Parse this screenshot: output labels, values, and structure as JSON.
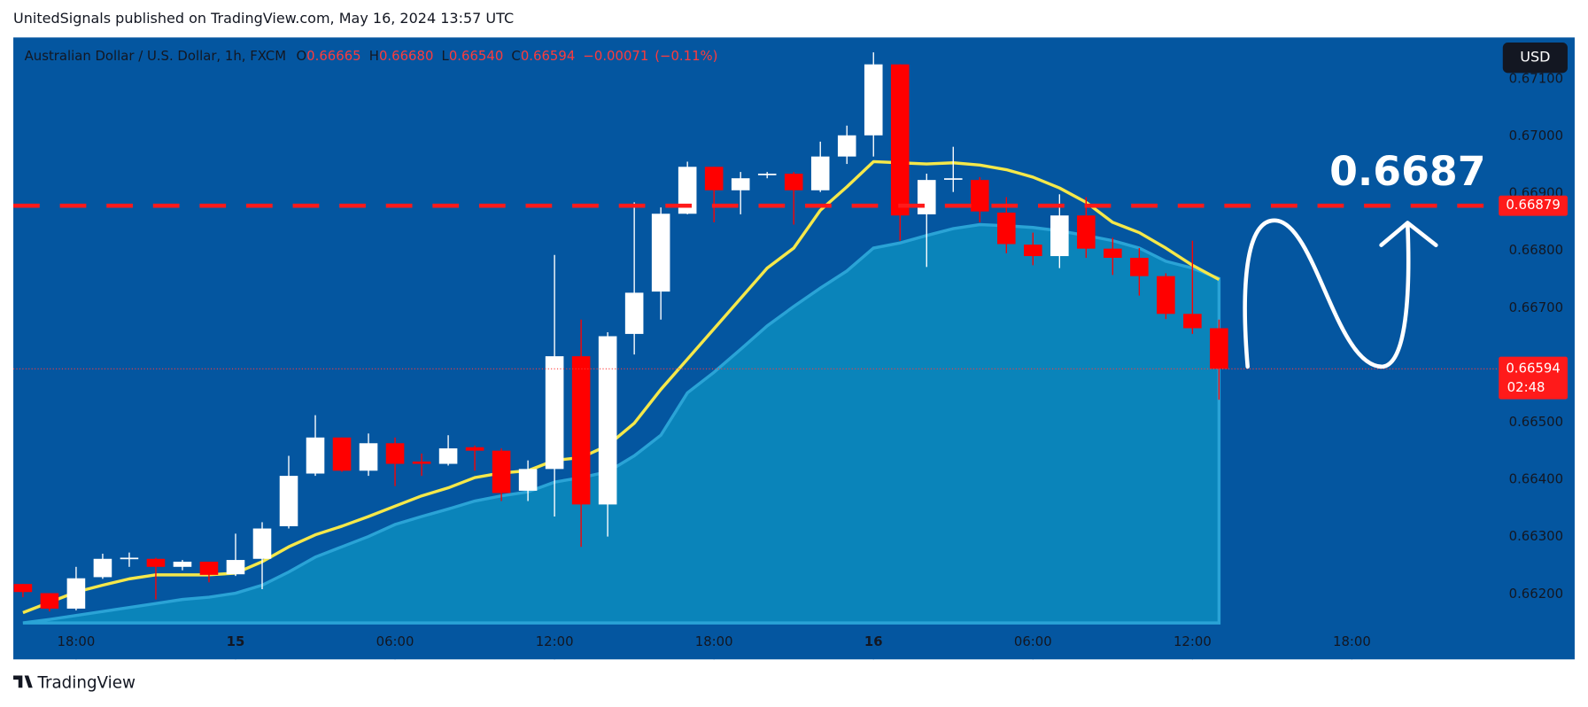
{
  "header": {
    "title": "UnitedSignals published on TradingView.com, May 16, 2024 13:57 UTC",
    "brand": "TradingView"
  },
  "legend": {
    "symbol": "Australian Dollar / U.S. Dollar, 1h, FXCM",
    "items": [
      {
        "key": "O",
        "value": "0.66665"
      },
      {
        "key": "H",
        "value": "0.66680"
      },
      {
        "key": "L",
        "value": "0.66540"
      },
      {
        "key": "C",
        "value": "0.66594"
      }
    ],
    "change": "−0.00071",
    "change_pct": "(−0.11%)"
  },
  "currency": "USD",
  "chart_data": {
    "type": "candlestick",
    "categories": [
      null,
      null,
      "18:00",
      null,
      null,
      null,
      null,
      null,
      "15",
      null,
      null,
      null,
      null,
      null,
      "06:00",
      null,
      null,
      null,
      null,
      null,
      "12:00",
      null,
      null,
      null,
      null,
      null,
      "18:00",
      null,
      null,
      null,
      null,
      null,
      "16",
      null,
      null,
      null,
      null,
      null,
      "06:00",
      null,
      null,
      null,
      null,
      null,
      "12:00",
      null,
      null,
      null,
      null,
      null,
      "18:00",
      null,
      null,
      null,
      null,
      null
    ],
    "open": [
      0.66218,
      0.66202,
      0.66175,
      0.6623,
      0.66262,
      0.66262,
      0.66248,
      0.66257,
      0.66235,
      0.66262,
      0.66319,
      0.66411,
      0.66474,
      0.66416,
      0.66464,
      0.66432,
      0.66428,
      0.66457,
      0.66451,
      0.66381,
      0.66419,
      0.66616,
      0.66357,
      0.66655,
      0.66729,
      0.66865,
      0.66947,
      0.66906,
      0.66933,
      0.66935,
      0.66906,
      0.66965,
      0.67002,
      0.67126,
      0.66864,
      0.66926,
      0.66924,
      0.66867,
      0.66811,
      0.66791,
      0.66862,
      0.66804,
      0.66788,
      0.66756,
      0.6669,
      0.66665,
      null,
      null,
      null,
      null,
      null,
      null,
      null,
      null,
      null,
      null
    ],
    "high": [
      0.66218,
      0.66202,
      0.66248,
      0.66271,
      0.66273,
      0.66264,
      0.6626,
      0.66257,
      0.66306,
      0.66326,
      0.66442,
      0.66513,
      0.66474,
      0.66481,
      0.66474,
      0.66446,
      0.66478,
      0.6646,
      0.66455,
      0.66434,
      0.66793,
      0.6668,
      0.66658,
      0.66885,
      0.66876,
      0.66956,
      0.66947,
      0.66938,
      0.66938,
      0.66938,
      0.66991,
      0.67019,
      0.67147,
      0.67126,
      0.66935,
      0.66982,
      0.66929,
      0.66894,
      0.66832,
      0.66899,
      0.66894,
      0.66823,
      0.66805,
      0.66761,
      0.66818,
      0.6668,
      null,
      null,
      null,
      null,
      null,
      null,
      null,
      null,
      null,
      null
    ],
    "low": [
      0.66195,
      0.6617,
      0.66172,
      0.66227,
      0.66248,
      0.66191,
      0.66242,
      0.66221,
      0.66232,
      0.66209,
      0.66315,
      0.66407,
      0.66414,
      0.66407,
      0.66389,
      0.66407,
      0.66425,
      0.66416,
      0.66363,
      0.66363,
      0.66336,
      0.66283,
      0.66301,
      0.66619,
      0.6668,
      0.66864,
      0.6685,
      0.66864,
      0.66927,
      0.66846,
      0.66903,
      0.66952,
      0.66965,
      0.66818,
      0.66772,
      0.66903,
      0.6685,
      0.66796,
      0.66775,
      0.6677,
      0.66788,
      0.66758,
      0.66722,
      0.66681,
      0.66655,
      0.6654,
      null,
      null,
      null,
      null,
      null,
      null,
      null,
      null,
      null,
      null
    ],
    "close": [
      0.66204,
      0.66175,
      0.66228,
      0.66262,
      0.66264,
      0.66248,
      0.66257,
      0.66234,
      0.6626,
      0.66315,
      0.66407,
      0.66474,
      0.66416,
      0.66464,
      0.66428,
      0.66428,
      0.66455,
      0.66451,
      0.66377,
      0.66419,
      0.66616,
      0.66357,
      0.66651,
      0.66727,
      0.66865,
      0.66947,
      0.66906,
      0.66927,
      0.66935,
      0.66906,
      0.66965,
      0.67002,
      0.67126,
      0.66862,
      0.66924,
      0.66927,
      0.66869,
      0.66812,
      0.66791,
      0.66862,
      0.66804,
      0.66788,
      0.66756,
      0.6669,
      0.66665,
      0.66594,
      null,
      null,
      null,
      null,
      null,
      null,
      null,
      null,
      null,
      null
    ],
    "up_color": "#ffffff",
    "down_color": "#ff0000",
    "series": [
      {
        "color": "#f5e84a",
        "values": [
          0.66168,
          0.66186,
          0.66204,
          0.66216,
          0.66227,
          0.66234,
          0.66234,
          0.66234,
          0.66237,
          0.66257,
          0.66283,
          0.66304,
          0.66319,
          0.66336,
          0.66354,
          0.66372,
          0.66386,
          0.66404,
          0.66412,
          0.66416,
          0.66434,
          0.66439,
          0.6646,
          0.66499,
          0.66558,
          0.66611,
          0.66664,
          0.66717,
          0.6677,
          0.66805,
          0.66871,
          0.66912,
          0.66956,
          0.66954,
          0.66952,
          0.66954,
          0.6695,
          0.66942,
          0.66929,
          0.6691,
          0.66885,
          0.6685,
          0.66832,
          0.66805,
          0.66775,
          0.6675,
          null,
          null,
          null,
          null,
          null,
          null,
          null,
          null,
          null,
          null
        ]
      },
      {
        "color": "#0a84ba",
        "fill": true,
        "values": [
          0.6615,
          0.66156,
          0.66163,
          0.6617,
          0.66177,
          0.66184,
          0.66191,
          0.66195,
          0.66202,
          0.66216,
          0.66239,
          0.66265,
          0.66283,
          0.66301,
          0.66322,
          0.66336,
          0.66349,
          0.66363,
          0.66372,
          0.66379,
          0.66396,
          0.66404,
          0.66414,
          0.66442,
          0.66478,
          0.66552,
          0.66588,
          0.66628,
          0.66669,
          0.66703,
          0.66735,
          0.66765,
          0.66805,
          0.66814,
          0.66827,
          0.66839,
          0.66846,
          0.66844,
          0.66841,
          0.66835,
          0.66827,
          0.66818,
          0.66805,
          0.66782,
          0.6677,
          0.66752,
          null,
          null,
          null,
          null,
          null,
          null,
          null,
          null,
          null,
          null
        ]
      }
    ],
    "hline": {
      "value": 0.66879,
      "label": "0.66879",
      "color": "#ff1a1a"
    },
    "last_price": {
      "value": 0.66594,
      "label": "0.66594",
      "countdown": "02:48"
    },
    "annotation": "0.6687",
    "ylim": [
      0.6615,
      0.67173
    ],
    "yticks": [
      {
        "value": 0.662,
        "label": "0.66200"
      },
      {
        "value": 0.663,
        "label": "0.66300"
      },
      {
        "value": 0.664,
        "label": "0.66400"
      },
      {
        "value": 0.665,
        "label": "0.66500"
      },
      {
        "value": 0.666,
        "label": "0.66600"
      },
      {
        "value": 0.667,
        "label": "0.66700"
      },
      {
        "value": 0.668,
        "label": "0.66800"
      },
      {
        "value": 0.669,
        "label": "0.66900"
      },
      {
        "value": 0.67,
        "label": "0.67000"
      },
      {
        "value": 0.671,
        "label": "0.67100"
      }
    ]
  }
}
